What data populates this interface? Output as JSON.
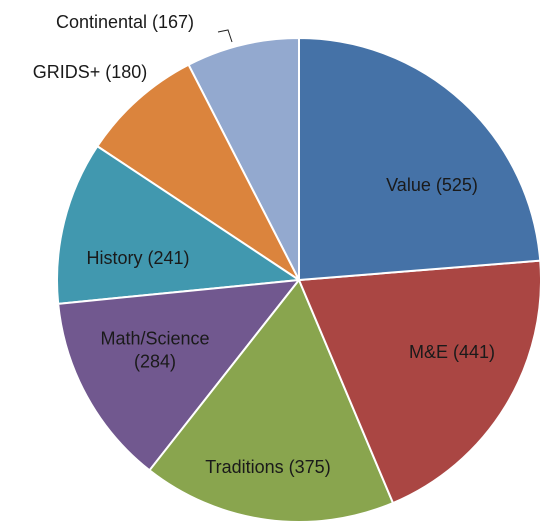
{
  "chart_data": {
    "type": "pie",
    "values": [
      525,
      441,
      375,
      284,
      241,
      180,
      167
    ],
    "value_labels": [
      "Value (525)",
      "M&E (441)",
      "Traditions (375)",
      "Math/Science (284)",
      "History (241)",
      "GRIDS+ (180)",
      "Continental (167)"
    ],
    "colors": [
      "#4572a7",
      "#aa4643",
      "#89a54e",
      "#71588f",
      "#4198af",
      "#db843d",
      "#93a9cf"
    ]
  }
}
